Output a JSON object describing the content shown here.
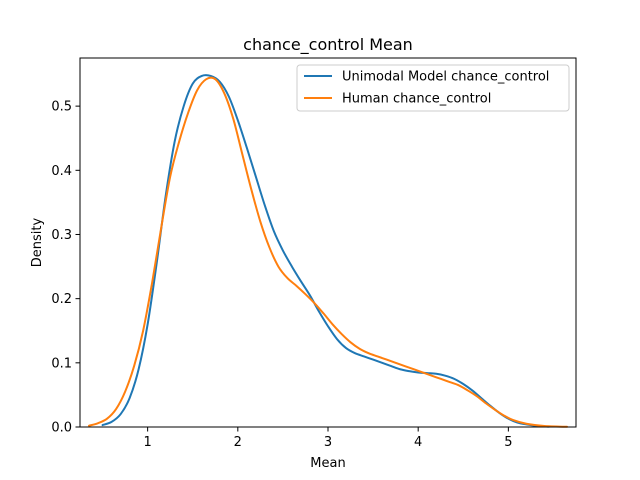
{
  "chart_data": {
    "type": "line",
    "title": "chance_control Mean",
    "xlabel": "Mean",
    "ylabel": "Density",
    "xlim": [
      0.25,
      5.75
    ],
    "ylim": [
      0,
      0.575
    ],
    "xticks": [
      1,
      2,
      3,
      4,
      5
    ],
    "yticks": [
      0.0,
      0.1,
      0.2,
      0.3,
      0.4,
      0.5
    ],
    "ytick_labels": [
      "0.0",
      "0.1",
      "0.2",
      "0.3",
      "0.4",
      "0.5"
    ],
    "grid": false,
    "legend_position": "top-right",
    "series": [
      {
        "name": "Unimodal Model chance_control",
        "color": "#1f77b4",
        "points": [
          [
            0.5,
            0.003
          ],
          [
            0.6,
            0.008
          ],
          [
            0.7,
            0.02
          ],
          [
            0.8,
            0.045
          ],
          [
            0.9,
            0.09
          ],
          [
            1.0,
            0.16
          ],
          [
            1.1,
            0.255
          ],
          [
            1.2,
            0.36
          ],
          [
            1.3,
            0.445
          ],
          [
            1.4,
            0.5
          ],
          [
            1.5,
            0.535
          ],
          [
            1.6,
            0.547
          ],
          [
            1.7,
            0.547
          ],
          [
            1.8,
            0.538
          ],
          [
            1.9,
            0.515
          ],
          [
            2.0,
            0.478
          ],
          [
            2.1,
            0.435
          ],
          [
            2.2,
            0.39
          ],
          [
            2.3,
            0.345
          ],
          [
            2.4,
            0.305
          ],
          [
            2.5,
            0.275
          ],
          [
            2.6,
            0.25
          ],
          [
            2.7,
            0.227
          ],
          [
            2.8,
            0.205
          ],
          [
            2.9,
            0.18
          ],
          [
            3.0,
            0.157
          ],
          [
            3.1,
            0.137
          ],
          [
            3.2,
            0.123
          ],
          [
            3.3,
            0.115
          ],
          [
            3.4,
            0.11
          ],
          [
            3.5,
            0.105
          ],
          [
            3.6,
            0.1
          ],
          [
            3.7,
            0.095
          ],
          [
            3.8,
            0.09
          ],
          [
            3.9,
            0.087
          ],
          [
            4.0,
            0.085
          ],
          [
            4.1,
            0.084
          ],
          [
            4.2,
            0.083
          ],
          [
            4.3,
            0.08
          ],
          [
            4.4,
            0.075
          ],
          [
            4.5,
            0.067
          ],
          [
            4.6,
            0.057
          ],
          [
            4.7,
            0.045
          ],
          [
            4.8,
            0.033
          ],
          [
            4.9,
            0.022
          ],
          [
            5.0,
            0.013
          ],
          [
            5.1,
            0.007
          ],
          [
            5.2,
            0.004
          ],
          [
            5.3,
            0.002
          ],
          [
            5.45,
            0.0005
          ]
        ]
      },
      {
        "name": "Human chance_control",
        "color": "#ff7f0e",
        "points": [
          [
            0.35,
            0.002
          ],
          [
            0.45,
            0.006
          ],
          [
            0.55,
            0.013
          ],
          [
            0.65,
            0.028
          ],
          [
            0.75,
            0.055
          ],
          [
            0.85,
            0.095
          ],
          [
            0.95,
            0.15
          ],
          [
            1.05,
            0.225
          ],
          [
            1.15,
            0.31
          ],
          [
            1.25,
            0.39
          ],
          [
            1.35,
            0.445
          ],
          [
            1.45,
            0.49
          ],
          [
            1.55,
            0.525
          ],
          [
            1.65,
            0.542
          ],
          [
            1.75,
            0.542
          ],
          [
            1.85,
            0.52
          ],
          [
            1.95,
            0.48
          ],
          [
            2.05,
            0.425
          ],
          [
            2.15,
            0.37
          ],
          [
            2.25,
            0.32
          ],
          [
            2.35,
            0.28
          ],
          [
            2.45,
            0.25
          ],
          [
            2.55,
            0.232
          ],
          [
            2.65,
            0.22
          ],
          [
            2.75,
            0.207
          ],
          [
            2.85,
            0.193
          ],
          [
            2.95,
            0.177
          ],
          [
            3.05,
            0.16
          ],
          [
            3.15,
            0.145
          ],
          [
            3.25,
            0.132
          ],
          [
            3.35,
            0.122
          ],
          [
            3.45,
            0.115
          ],
          [
            3.55,
            0.11
          ],
          [
            3.65,
            0.105
          ],
          [
            3.75,
            0.1
          ],
          [
            3.85,
            0.095
          ],
          [
            3.95,
            0.09
          ],
          [
            4.05,
            0.085
          ],
          [
            4.15,
            0.08
          ],
          [
            4.25,
            0.075
          ],
          [
            4.35,
            0.07
          ],
          [
            4.45,
            0.065
          ],
          [
            4.55,
            0.057
          ],
          [
            4.65,
            0.048
          ],
          [
            4.75,
            0.037
          ],
          [
            4.85,
            0.027
          ],
          [
            4.95,
            0.018
          ],
          [
            5.05,
            0.011
          ],
          [
            5.2,
            0.005
          ],
          [
            5.4,
            0.0015
          ],
          [
            5.65,
            0.0003
          ]
        ]
      }
    ]
  }
}
